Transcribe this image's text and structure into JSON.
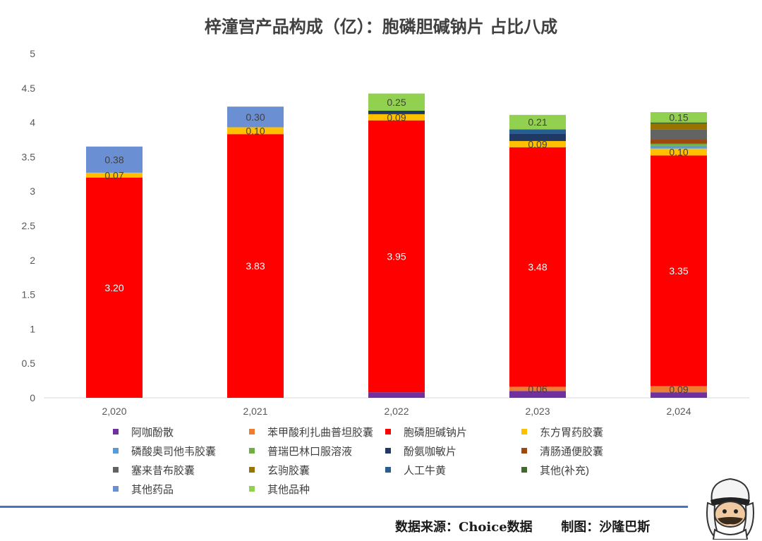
{
  "chart_data": {
    "type": "bar",
    "stacked": true,
    "title": "梓潼宫产品构成（亿）：胞磷胆碱钠片 占比八成",
    "xlabel": "",
    "ylabel": "",
    "ylim": [
      0,
      5
    ],
    "yticks": [
      "0",
      "0.5",
      "1",
      "1.5",
      "2",
      "2.5",
      "3",
      "3.5",
      "4",
      "4.5",
      "5"
    ],
    "categories": [
      "2,020",
      "2,021",
      "2,022",
      "2,023",
      "2,024"
    ],
    "grid": false,
    "legend_position": "bottom",
    "series": [
      {
        "name": "阿咖酚散",
        "color": "#7030a0",
        "values": [
          0,
          0,
          0.08,
          0.1,
          0.08
        ]
      },
      {
        "name": "苯甲酸利扎曲普坦胶囊",
        "color": "#ed7d31",
        "values": [
          0,
          0,
          0,
          0.06,
          0.09
        ]
      },
      {
        "name": "胞磷胆碱钠片",
        "color": "#ff0000",
        "values": [
          3.2,
          3.83,
          3.95,
          3.48,
          3.35
        ]
      },
      {
        "name": "东方胃药胶囊",
        "color": "#ffc000",
        "values": [
          0.07,
          0.1,
          0.09,
          0.09,
          0.1
        ]
      },
      {
        "name": "磷酸奥司他韦胶囊",
        "color": "#5b9bd5",
        "values": [
          0,
          0,
          0,
          0,
          0.04
        ]
      },
      {
        "name": "普瑞巴林口服溶液",
        "color": "#70ad47",
        "values": [
          0,
          0,
          0,
          0,
          0.03
        ]
      },
      {
        "name": "酚氨咖敏片",
        "color": "#203864",
        "values": [
          0,
          0,
          0.05,
          0.11,
          0
        ]
      },
      {
        "name": "清肠通便胶囊",
        "color": "#9e480e",
        "values": [
          0,
          0,
          0,
          0,
          0.06
        ]
      },
      {
        "name": "塞来昔布胶囊",
        "color": "#636363",
        "values": [
          0,
          0,
          0,
          0,
          0.15
        ]
      },
      {
        "name": "玄驹胶囊",
        "color": "#997300",
        "values": [
          0,
          0,
          0,
          0,
          0.08
        ]
      },
      {
        "name": "人工牛黄",
        "color": "#255e91",
        "values": [
          0,
          0,
          0,
          0.06,
          0
        ]
      },
      {
        "name": "其他(补充)",
        "color": "#43682b",
        "values": [
          0,
          0,
          0,
          0,
          0.02
        ]
      },
      {
        "name": "其他药品",
        "color": "#6a8fd3",
        "values": [
          0.38,
          0.3,
          0,
          0,
          0
        ]
      },
      {
        "name": "其他品种",
        "color": "#92d050",
        "values": [
          0,
          0,
          0.25,
          0.21,
          0.15
        ]
      }
    ],
    "data_labels": [
      {
        "series": 1,
        "category": 3,
        "text": "0.06",
        "color": "#404040"
      },
      {
        "series": 1,
        "category": 4,
        "text": "0.09",
        "color": "#404040"
      },
      {
        "series": 2,
        "category": 0,
        "text": "3.20",
        "color": "#ffffff"
      },
      {
        "series": 2,
        "category": 1,
        "text": "3.83",
        "color": "#ffffff"
      },
      {
        "series": 2,
        "category": 2,
        "text": "3.95",
        "color": "#ffffff"
      },
      {
        "series": 2,
        "category": 3,
        "text": "3.48",
        "color": "#ffffff"
      },
      {
        "series": 2,
        "category": 4,
        "text": "3.35",
        "color": "#ffffff"
      },
      {
        "series": 3,
        "category": 0,
        "text": "0.07",
        "color": "#404040"
      },
      {
        "series": 3,
        "category": 1,
        "text": "0.10",
        "color": "#404040"
      },
      {
        "series": 3,
        "category": 2,
        "text": "0.09",
        "color": "#404040"
      },
      {
        "series": 3,
        "category": 3,
        "text": "0.09",
        "color": "#404040"
      },
      {
        "series": 3,
        "category": 4,
        "text": "0.10",
        "color": "#404040"
      },
      {
        "series": 12,
        "category": 0,
        "text": "0.38",
        "color": "#404040"
      },
      {
        "series": 12,
        "category": 1,
        "text": "0.30",
        "color": "#404040"
      },
      {
        "series": 13,
        "category": 2,
        "text": "0.25",
        "color": "#404040"
      },
      {
        "series": 13,
        "category": 3,
        "text": "0.21",
        "color": "#404040"
      },
      {
        "series": 13,
        "category": 4,
        "text": "0.15",
        "color": "#404040"
      }
    ]
  },
  "footer": {
    "source": "数据来源：Choice数据",
    "author": "制图：沙隆巴斯"
  }
}
